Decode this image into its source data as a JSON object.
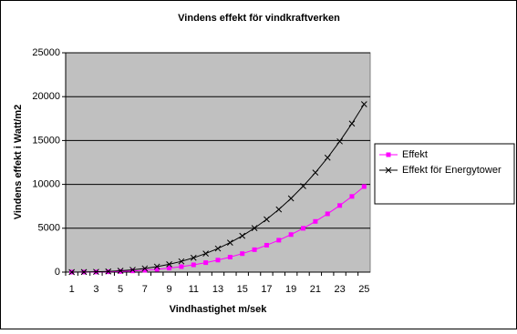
{
  "chart_data": {
    "type": "line",
    "title": "Vindens effekt för vindkraftverken",
    "x_label": "Vindhastighet m/sek",
    "y_label": "Vindens effekt i Watt/m2",
    "categories": [
      1,
      null,
      3,
      null,
      5,
      null,
      7,
      null,
      9,
      null,
      11,
      null,
      13,
      null,
      15,
      null,
      17,
      null,
      19,
      null,
      21,
      null,
      23,
      null,
      25
    ],
    "series": [
      {
        "name": "Effekt",
        "color": "#ff00ff",
        "marker": "square",
        "values": [
          1,
          5,
          17,
          40,
          78,
          135,
          214,
          319,
          455,
          624,
          831,
          1078,
          1371,
          1712,
          2106,
          2556,
          3066,
          3639,
          4280,
          4992,
          5779,
          6644,
          7592,
          8626,
          9750
        ]
      },
      {
        "name": "Effekt för Energytower",
        "color": "#000000",
        "marker": "x",
        "values": [
          1,
          10,
          33,
          78,
          153,
          265,
          420,
          627,
          893,
          1225,
          1630,
          2117,
          2691,
          3361,
          4134,
          5018,
          6018,
          7144,
          8402,
          9800,
          11345,
          13044,
          14905,
          16934,
          19141
        ]
      }
    ],
    "ylim": [
      0,
      25000
    ],
    "yticks": [
      0,
      5000,
      10000,
      15000,
      20000,
      25000
    ],
    "grid": true,
    "legend": "right"
  }
}
